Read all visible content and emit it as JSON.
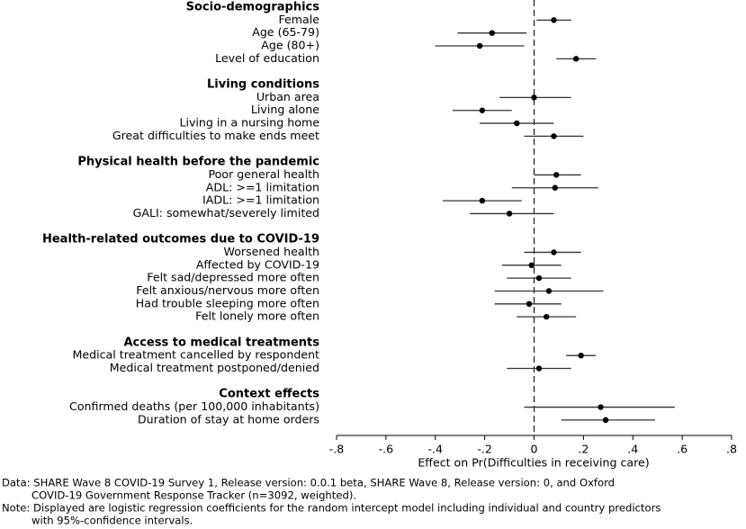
{
  "chart_data": {
    "type": "coefficient",
    "groups": [
      {
        "title": "Socio-demographics",
        "items": [
          {
            "label": "Female",
            "estimate": 0.08,
            "lower": 0.01,
            "upper": 0.15
          },
          {
            "label": "Age (65-79)",
            "estimate": -0.17,
            "lower": -0.31,
            "upper": -0.03
          },
          {
            "label": "Age (80+)",
            "estimate": -0.22,
            "lower": -0.4,
            "upper": -0.04
          },
          {
            "label": "Level of education",
            "estimate": 0.17,
            "lower": 0.09,
            "upper": 0.25
          }
        ]
      },
      {
        "title": "Living conditions",
        "items": [
          {
            "label": "Urban area",
            "estimate": 0.0,
            "lower": -0.14,
            "upper": 0.15
          },
          {
            "label": "Living alone",
            "estimate": -0.21,
            "lower": -0.33,
            "upper": -0.09
          },
          {
            "label": "Living in a nursing home",
            "estimate": -0.07,
            "lower": -0.22,
            "upper": 0.08
          },
          {
            "label": "Great difficulties to make ends meet",
            "estimate": 0.08,
            "lower": -0.04,
            "upper": 0.2
          }
        ]
      },
      {
        "title": "Physical health before the pandemic",
        "items": [
          {
            "label": "Poor general health",
            "estimate": 0.09,
            "lower": 0.0,
            "upper": 0.19
          },
          {
            "label": "ADL: >=1 limitation",
            "estimate": 0.085,
            "lower": -0.09,
            "upper": 0.26
          },
          {
            "label": "IADL: >=1 limitation",
            "estimate": -0.21,
            "lower": -0.37,
            "upper": -0.05
          },
          {
            "label": "GALI: somewhat/severely limited",
            "estimate": -0.1,
            "lower": -0.26,
            "upper": 0.08
          }
        ]
      },
      {
        "title": "Health-related outcomes due to COVID-19",
        "items": [
          {
            "label": "Worsened health",
            "estimate": 0.08,
            "lower": -0.04,
            "upper": 0.19
          },
          {
            "label": "Affected by COVID-19",
            "estimate": -0.01,
            "lower": -0.13,
            "upper": 0.11
          },
          {
            "label": "Felt sad/depressed more often",
            "estimate": 0.02,
            "lower": -0.11,
            "upper": 0.15
          },
          {
            "label": "Felt anxious/nervous more often",
            "estimate": 0.06,
            "lower": -0.16,
            "upper": 0.28
          },
          {
            "label": "Had trouble sleeping more often",
            "estimate": -0.02,
            "lower": -0.16,
            "upper": 0.11
          },
          {
            "label": "Felt lonely more often",
            "estimate": 0.05,
            "lower": -0.07,
            "upper": 0.17
          }
        ]
      },
      {
        "title": "Access to medical treatments",
        "items": [
          {
            "label": "Medical treatment cancelled by respondent",
            "estimate": 0.19,
            "lower": 0.13,
            "upper": 0.25
          },
          {
            "label": "Medical treatment postponed/denied",
            "estimate": 0.02,
            "lower": -0.11,
            "upper": 0.15
          }
        ]
      },
      {
        "title": "Context effects",
        "items": [
          {
            "label": "Confirmed deaths (per 100,000 inhabitants)",
            "estimate": 0.27,
            "lower": -0.04,
            "upper": 0.57
          },
          {
            "label": "Duration of stay at home orders",
            "estimate": 0.29,
            "lower": 0.11,
            "upper": 0.49
          }
        ]
      }
    ],
    "xlabel": "Effect on Pr(Difficulties in receiving care)",
    "xlim": [
      -0.8,
      0.8
    ],
    "xticks": [
      {
        "value": -0.8,
        "label": "-.8"
      },
      {
        "value": -0.6,
        "label": "-.6"
      },
      {
        "value": -0.4,
        "label": "-.4"
      },
      {
        "value": -0.2,
        "label": "-.2"
      },
      0,
      {
        "value": 0.2,
        "label": ".2"
      },
      {
        "value": 0.4,
        "label": ".4"
      },
      {
        "value": 0.6,
        "label": ".6"
      },
      {
        "value": 0.8,
        "label": ".8"
      }
    ],
    "reference_line": 0,
    "color": "#000000",
    "notes": [
      "Data: SHARE Wave 8 COVID-19 Survey 1, Release version: 0.0.1 beta, SHARE Wave 8, Release version: 0, and Oxford",
      "COVID-19 Government Response Tracker (n=3092, weighted).",
      "Note: Displayed are logistic regression coefficients for the random intercept model including individual and country predictors",
      "with 95%-confidence intervals."
    ]
  }
}
